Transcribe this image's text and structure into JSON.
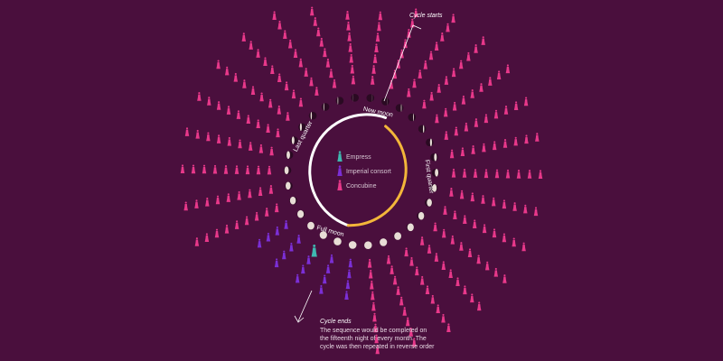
{
  "colors": {
    "background": "#4a0f3d",
    "concubine": "#e8388a",
    "imperial_consort": "#7b2fd6",
    "empress": "#3fb8b0",
    "cycle_ring_waxing": "#f3b63a",
    "cycle_ring_waning": "#ffffff",
    "moon_light": "#e8ddd6",
    "moon_dark": "#2a0a22"
  },
  "icons": {
    "concubine": "woman-figure-icon",
    "imperial_consort": "woman-figure-icon",
    "empress": "woman-figure-icon",
    "moon": "moon-phase-icon"
  },
  "legend": [
    {
      "key": "empress",
      "label": "Empress"
    },
    {
      "key": "imperial_consort",
      "label": "Imperial consort"
    },
    {
      "key": "concubine",
      "label": "Concubine"
    }
  ],
  "phases": {
    "new_moon": "New moon",
    "first_quarter": "First quarter",
    "full_moon": "Full moon",
    "last_quarter": "Last quarter"
  },
  "annotations": {
    "cycle_starts": "Cycle starts",
    "cycle_ends_title": "Cycle ends",
    "cycle_ends_line1": "The sequence would be completed on",
    "cycle_ends_line2": "the fifteenth night of every month. The",
    "cycle_ends_line3": "cycle was then repeated in reverse order"
  },
  "nights": {
    "total": 15,
    "concubines_per_night": 9,
    "imperial_consort_nights": 7,
    "empress_nights": 2
  }
}
